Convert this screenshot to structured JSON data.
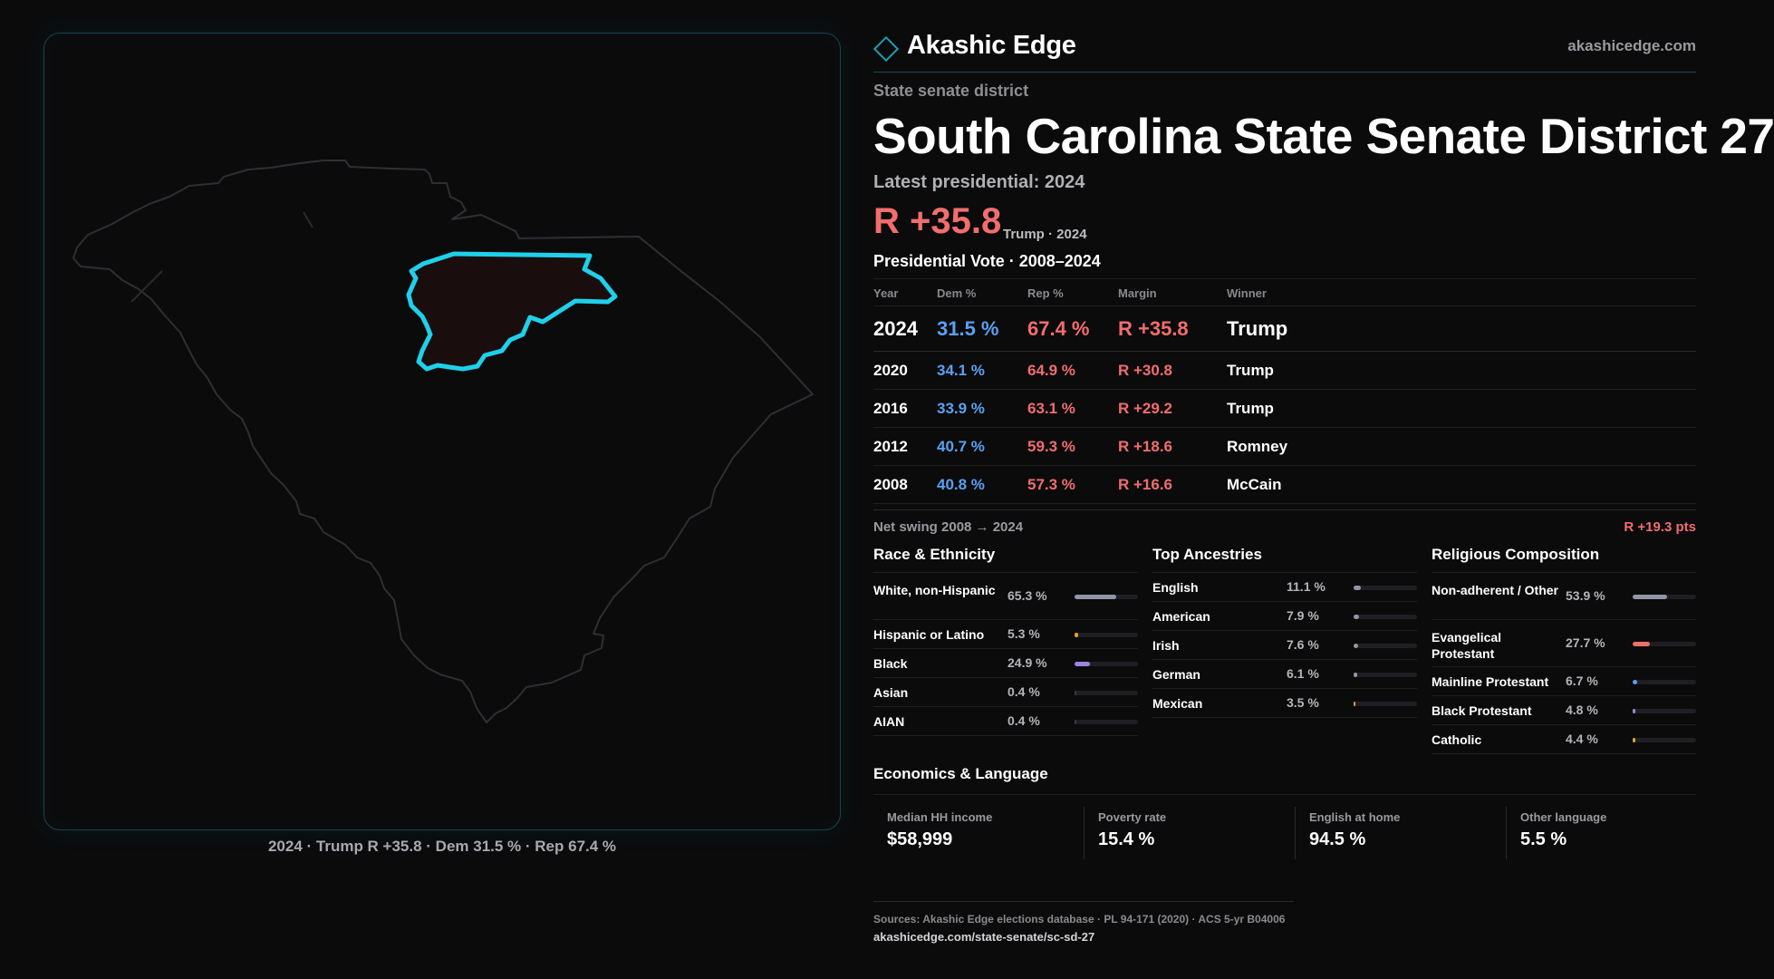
{
  "brand": {
    "name": "Akashic Edge",
    "site": "akashicedge.com"
  },
  "district": {
    "kind": "State senate district",
    "title": "South Carolina State Senate District 27",
    "latest_label": "Latest presidential: 2024",
    "margin": "R +35.8",
    "margin_note": "Trump · 2024"
  },
  "map": {
    "caption": "2024 · Trump R +35.8 · Dem 31.5 % · Rep 67.4 %",
    "state_stroke": "#2f2f33",
    "district_stroke": "#1fd0ea",
    "district_fill": "#1a0d0e"
  },
  "presidential": {
    "title": "Presidential Vote · 2008–2024",
    "columns": [
      "Year",
      "Dem %",
      "Rep %",
      "Margin",
      "Winner"
    ],
    "rows": [
      {
        "year": "2024",
        "dem": "31.5 %",
        "rep": "67.4 %",
        "margin": "R +35.8",
        "winner": "Trump"
      },
      {
        "year": "2020",
        "dem": "34.1 %",
        "rep": "64.9 %",
        "margin": "R +30.8",
        "winner": "Trump"
      },
      {
        "year": "2016",
        "dem": "33.9 %",
        "rep": "63.1 %",
        "margin": "R +29.2",
        "winner": "Trump"
      },
      {
        "year": "2012",
        "dem": "40.7 %",
        "rep": "59.3 %",
        "margin": "R +18.6",
        "winner": "Romney"
      },
      {
        "year": "2008",
        "dem": "40.8 %",
        "rep": "57.3 %",
        "margin": "R +16.6",
        "winner": "McCain"
      }
    ],
    "swing_label": "Net swing 2008 → 2024",
    "swing_value": "R +19.3 pts"
  },
  "demographics": {
    "race": {
      "title": "Race & Ethnicity",
      "items": [
        {
          "label": "White, non-Hispanic",
          "value": "65.3 %",
          "fraction": 0.653,
          "color": "#8f97a6"
        },
        {
          "label": "Hispanic or Latino",
          "value": "5.3 %",
          "fraction": 0.053,
          "color": "#e0a030"
        },
        {
          "label": "Black",
          "value": "24.9 %",
          "fraction": 0.249,
          "color": "#9a86e0"
        },
        {
          "label": "Asian",
          "value": "0.4 %",
          "fraction": 0.004,
          "color": "#3a3a40"
        },
        {
          "label": "AIAN",
          "value": "0.4 %",
          "fraction": 0.004,
          "color": "#3a3a40"
        }
      ]
    },
    "ancestry": {
      "title": "Top Ancestries",
      "items": [
        {
          "label": "English",
          "value": "11.1 %",
          "fraction": 0.111,
          "color": "#8f97a6"
        },
        {
          "label": "American",
          "value": "7.9 %",
          "fraction": 0.079,
          "color": "#8f97a6"
        },
        {
          "label": "Irish",
          "value": "7.6 %",
          "fraction": 0.076,
          "color": "#8f97a6"
        },
        {
          "label": "German",
          "value": "6.1 %",
          "fraction": 0.061,
          "color": "#8f97a6"
        },
        {
          "label": "Mexican",
          "value": "3.5 %",
          "fraction": 0.035,
          "color": "#e0a030"
        }
      ]
    },
    "religion": {
      "title": "Religious Composition",
      "items": [
        {
          "label": "Non-adherent / Other",
          "value": "53.9 %",
          "fraction": 0.539,
          "color": "#8f97a6"
        },
        {
          "label": "Evangelical Protestant",
          "value": "27.7 %",
          "fraction": 0.277,
          "color": "#f26d6d"
        },
        {
          "label": "Mainline Protestant",
          "value": "6.7 %",
          "fraction": 0.067,
          "color": "#5aa1f2"
        },
        {
          "label": "Black Protestant",
          "value": "4.8 %",
          "fraction": 0.048,
          "color": "#9a86e0"
        },
        {
          "label": "Catholic",
          "value": "4.4 %",
          "fraction": 0.044,
          "color": "#e0a030"
        }
      ]
    }
  },
  "economics": {
    "title": "Economics & Language",
    "items": [
      {
        "label": "Median HH income",
        "value": "$58,999"
      },
      {
        "label": "Poverty rate",
        "value": "15.4 %"
      },
      {
        "label": "English at home",
        "value": "94.5 %"
      },
      {
        "label": "Other language",
        "value": "5.5 %"
      }
    ]
  },
  "footer": {
    "sources": "Sources: Akashic Edge elections database · PL 94-171 (2020) · ACS 5-yr B04006",
    "url": "akashicedge.com/state-senate/sc-sd-27"
  }
}
